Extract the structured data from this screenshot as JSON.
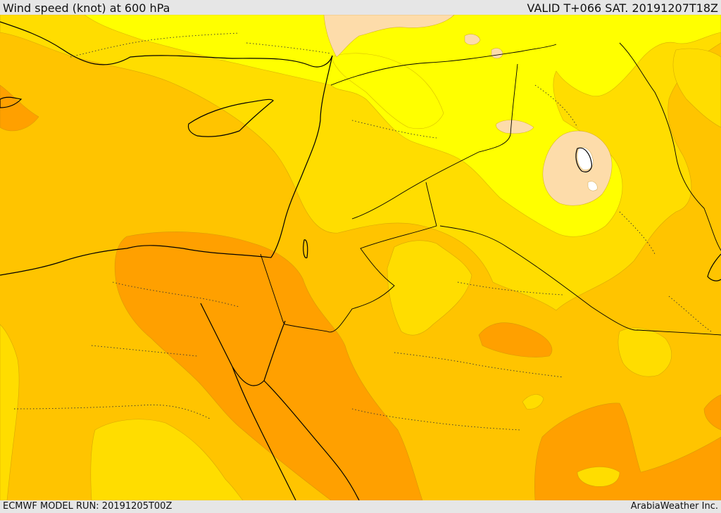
{
  "header": {
    "title": "Wind speed (knot) at 600 hPa",
    "valid_time": "VALID T+066 SAT. 20191207T18Z"
  },
  "footer": {
    "model_run": "ECMWF MODEL RUN: 20191205T00Z",
    "credit": "ArabiaWeather Inc."
  },
  "colors": {
    "lowest_wind": "#ffffff",
    "very_low_wind": "#fddcaa",
    "low_wind": "#ffff00",
    "moderate_low_wind": "#ffdd00",
    "moderate_wind": "#ffc400",
    "higher_wind": "#ffa000"
  }
}
